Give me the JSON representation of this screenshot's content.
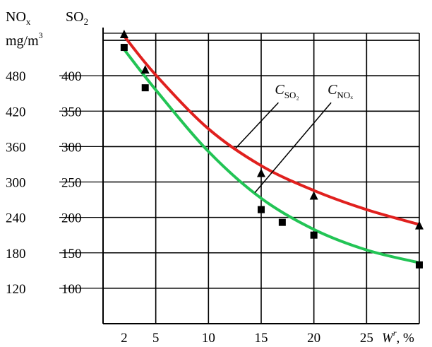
{
  "chart_data": {
    "type": "line",
    "title": "",
    "y_axes": [
      {
        "unit_top": "NO",
        "unit_top_sub": "x",
        "unit_bottom": "mg/m",
        "unit_bottom_sup": "3",
        "ticks": [
          120,
          180,
          240,
          300,
          360,
          420,
          480
        ]
      },
      {
        "unit_top": "SO",
        "unit_top_sub": "2",
        "ticks": [
          100,
          150,
          200,
          250,
          300,
          350,
          400
        ]
      }
    ],
    "x_axis": {
      "label_main": "W",
      "label_sup": "r",
      "label_suffix": ", %",
      "ticks": [
        2,
        5,
        10,
        15,
        20,
        25
      ],
      "range": [
        0,
        30
      ]
    },
    "so2_range": [
      50,
      460
    ],
    "series": [
      {
        "name": "C",
        "name_sub": "SO₂",
        "color": "#e0201e",
        "marker": "triangle",
        "points": [
          {
            "x": 2,
            "y": 458
          },
          {
            "x": 4,
            "y": 408
          },
          {
            "x": 15,
            "y": 262
          },
          {
            "x": 20,
            "y": 230
          },
          {
            "x": 30,
            "y": 188
          }
        ],
        "curve": [
          [
            2,
            456
          ],
          [
            5,
            401
          ],
          [
            10,
            325
          ],
          [
            15,
            273
          ],
          [
            20,
            238
          ],
          [
            25,
            211
          ],
          [
            30,
            190
          ]
        ]
      },
      {
        "name": "C",
        "name_sub": "NOₓ",
        "color": "#22c455",
        "marker": "square",
        "points": [
          {
            "x": 2,
            "y": 440
          },
          {
            "x": 4,
            "y": 383
          },
          {
            "x": 15,
            "y": 211
          },
          {
            "x": 17,
            "y": 193
          },
          {
            "x": 20,
            "y": 175
          },
          {
            "x": 30,
            "y": 133
          }
        ],
        "curve": [
          [
            2,
            437
          ],
          [
            5,
            380
          ],
          [
            10,
            293
          ],
          [
            15,
            227
          ],
          [
            20,
            183
          ],
          [
            25,
            154
          ],
          [
            30,
            136
          ]
        ]
      }
    ],
    "annotations": [
      {
        "series": 0,
        "label_x": 16.3,
        "label_y": 374,
        "curve_x": 12.6
      },
      {
        "series": 1,
        "label_x": 21.3,
        "label_y": 374,
        "curve_x": 14.4
      }
    ],
    "grid": true
  }
}
